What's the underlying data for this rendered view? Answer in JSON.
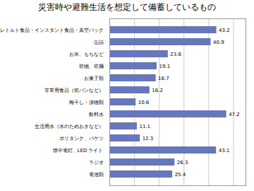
{
  "chart_data": {
    "type": "bar",
    "orientation": "horizontal",
    "title": "災害時や避難生活を想定して備蓄しているもの",
    "categories": [
      "レトルト食品・インスタント食品・真空パック",
      "缶詰",
      "お米、もちなど",
      "乾物、乾麺",
      "お菓子類",
      "非常用食品（乾パンなど）",
      "梅干し・漬物類",
      "飲料水",
      "生活用水（水のためおきなど）",
      "ポリタンク、バケツ",
      "懐中電灯、LED ライト",
      "ラジオ",
      "電池類"
    ],
    "values": [
      43.2,
      40.9,
      23.6,
      19.1,
      18.7,
      16.2,
      10.6,
      47.2,
      11.1,
      12.3,
      43.1,
      26.3,
      25.4
    ],
    "color": "#6677bb",
    "xlim": [
      0,
      55
    ],
    "xticks": [
      0,
      10,
      20,
      30,
      40,
      50
    ],
    "grid": true,
    "data_labels": true,
    "tick_labels": "y"
  }
}
